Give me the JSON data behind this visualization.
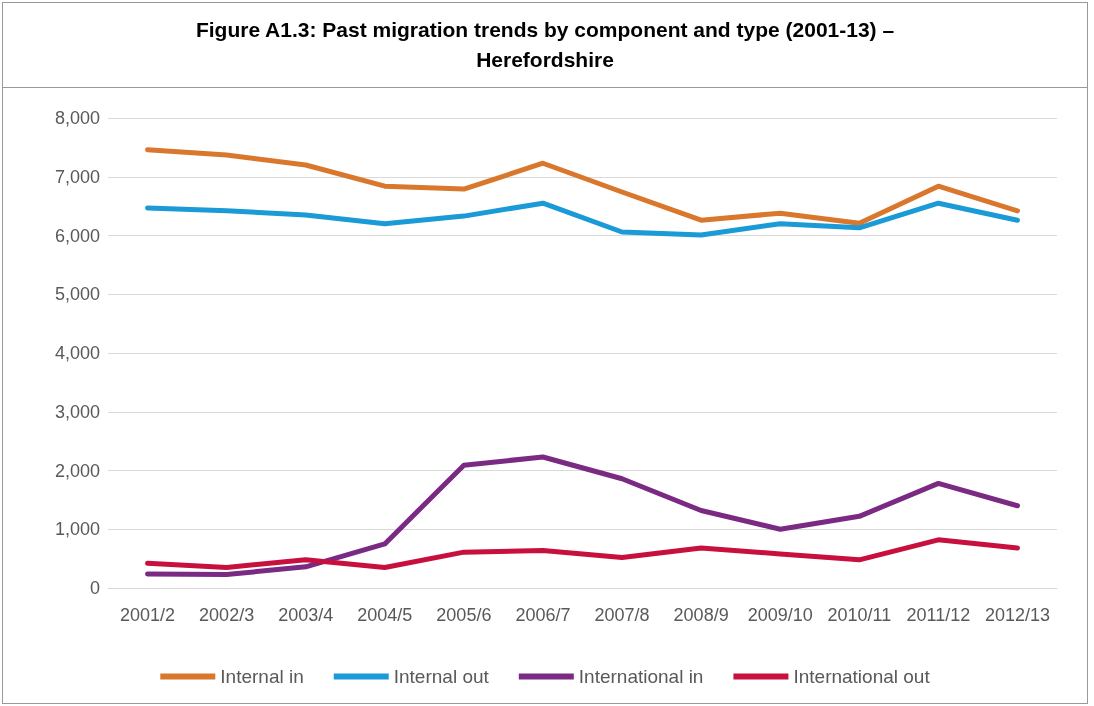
{
  "chart_data": {
    "type": "line",
    "title": "Figure A1.3: Past migration trends by component and type (2001-13) – Herefordshire",
    "categories": [
      "2001/2",
      "2002/3",
      "2003/4",
      "2004/5",
      "2005/6",
      "2006/7",
      "2007/8",
      "2008/9",
      "2009/10",
      "2010/11",
      "2011/12",
      "2012/13"
    ],
    "series": [
      {
        "name": "Internal in",
        "color": "#d9782d",
        "values": [
          7460,
          7370,
          7200,
          6840,
          6790,
          7230,
          6740,
          6260,
          6380,
          6210,
          6840,
          6420
        ]
      },
      {
        "name": "Internal out",
        "color": "#1a9ad6",
        "values": [
          6470,
          6420,
          6350,
          6200,
          6330,
          6550,
          6060,
          6010,
          6200,
          6130,
          6550,
          6260
        ]
      },
      {
        "name": "International in",
        "color": "#7a2a82",
        "values": [
          240,
          230,
          360,
          750,
          2090,
          2230,
          1860,
          1320,
          1000,
          1220,
          1780,
          1400
        ]
      },
      {
        "name": "International out",
        "color": "#c8103e",
        "values": [
          420,
          350,
          480,
          350,
          610,
          640,
          520,
          680,
          580,
          480,
          820,
          680
        ]
      }
    ],
    "ylim": [
      0,
      8000
    ],
    "yticks": [
      0,
      {
        "value": 1000,
        "label": "1,000"
      },
      {
        "value": 2000,
        "label": "2,000"
      },
      {
        "value": 3000,
        "label": "3,000"
      },
      {
        "value": 4000,
        "label": "4,000"
      },
      {
        "value": 5000,
        "label": "5,000"
      },
      {
        "value": 6000,
        "label": "6,000"
      },
      {
        "value": 7000,
        "label": "7,000"
      },
      {
        "value": 8000,
        "label": "8,000"
      }
    ],
    "grid": "y",
    "legend": "bottom",
    "marker": "none",
    "line_style": "solid"
  }
}
